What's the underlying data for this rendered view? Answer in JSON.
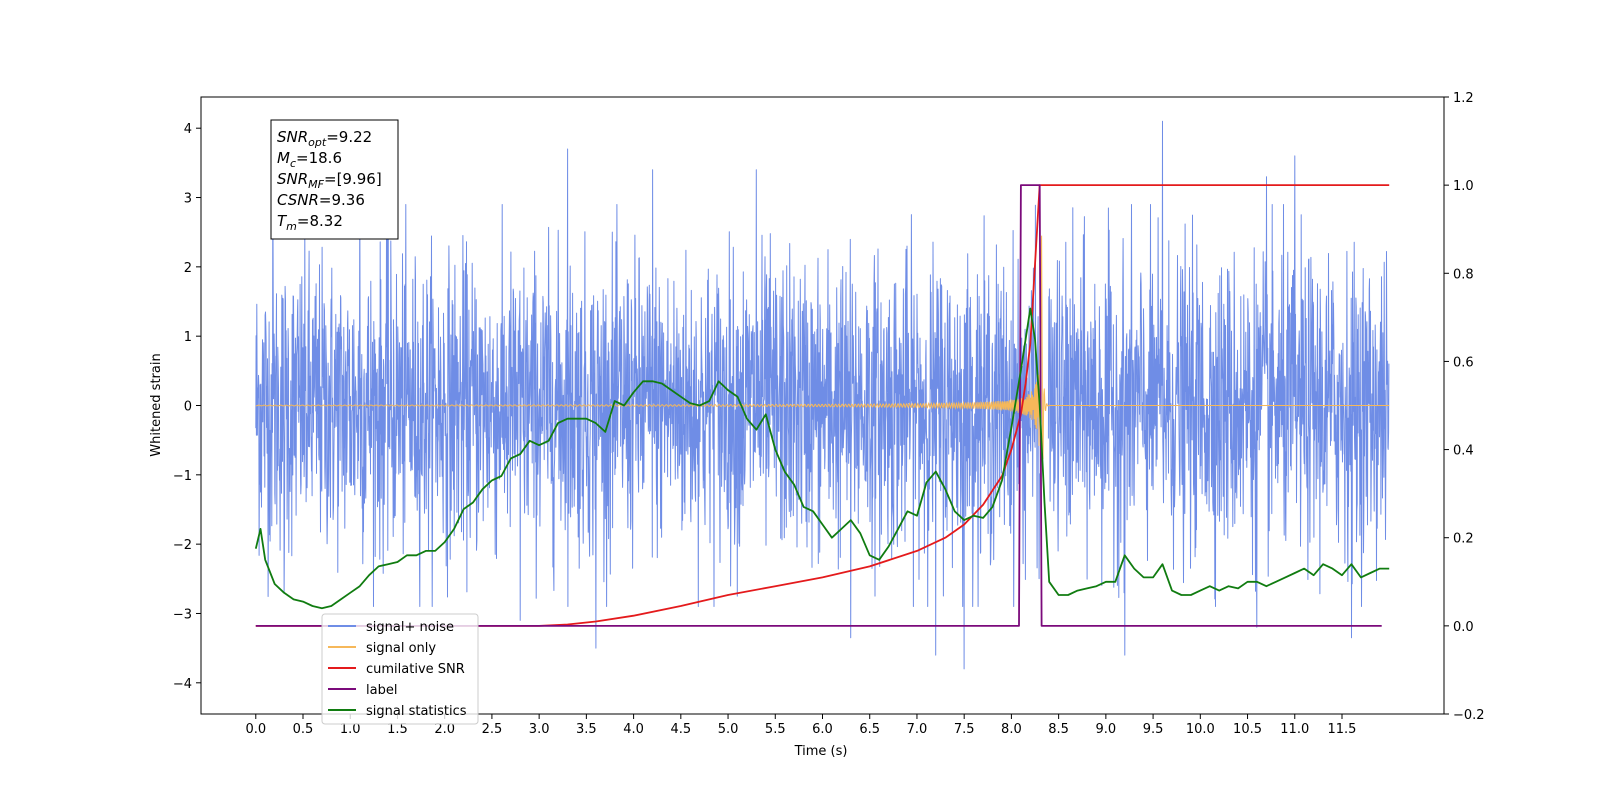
{
  "chart_data": {
    "type": "line",
    "xlabel": "Time (s)",
    "ylabel": "Whitened strain",
    "xlim": [
      -0.58,
      12.58
    ],
    "ylim": [
      -4.45,
      4.45
    ],
    "y2lim": [
      -0.2,
      1.2
    ],
    "x_ticks": [
      "0.0",
      "0.5",
      "1.0",
      "1.5",
      "2.0",
      "2.5",
      "3.0",
      "3.5",
      "4.0",
      "4.5",
      "5.0",
      "5.5",
      "6.0",
      "6.5",
      "7.0",
      "7.5",
      "8.0",
      "8.5",
      "9.0",
      "9.5",
      "10.0",
      "10.5",
      "11.0",
      "11.5"
    ],
    "y_ticks": [
      "4",
      "3",
      "2",
      "1",
      "0",
      "−1",
      "−2",
      "−3",
      "−4"
    ],
    "y2_ticks": [
      "1.2",
      "1.0",
      "0.8",
      "0.6",
      "0.4",
      "0.2",
      "0.0",
      "−0.2"
    ],
    "grid": false,
    "legend_position": "lower-left",
    "info_box": [
      {
        "main": "SNR",
        "sub": "opt",
        "value": "=9.22"
      },
      {
        "main": "M",
        "sub": "c",
        "value": "=18.6"
      },
      {
        "main": "SNR",
        "sub": "MF",
        "value": "=[9.96]"
      },
      {
        "main": "CSNR",
        "sub": "",
        "value": "=9.36"
      },
      {
        "main": "T",
        "sub": "m",
        "value": "=8.32"
      }
    ],
    "series": [
      {
        "name": "signal+ noise",
        "color": "#6f8de6",
        "axis": "left",
        "kind": "noise",
        "x_range": [
          0.0,
          12.0
        ],
        "std": 1.05,
        "peaks": [
          [
            0.18,
            3.3
          ],
          [
            1.1,
            3.3
          ],
          [
            1.4,
            3.6
          ],
          [
            3.3,
            3.7
          ],
          [
            4.2,
            3.4
          ],
          [
            5.3,
            3.4
          ],
          [
            6.3,
            3.95
          ],
          [
            9.6,
            4.1
          ],
          [
            10.7,
            3.3
          ],
          [
            11.0,
            3.6
          ],
          [
            11.6,
            3.65
          ],
          [
            0.3,
            -2.7
          ],
          [
            2.8,
            -3.1
          ],
          [
            3.6,
            -3.5
          ],
          [
            6.3,
            -3.35
          ],
          [
            7.2,
            -3.6
          ],
          [
            7.5,
            -3.8
          ],
          [
            9.2,
            -3.6
          ],
          [
            10.6,
            -3.2
          ],
          [
            11.6,
            -3.35
          ]
        ],
        "excluded_interval": [
          8.3,
          8.39
        ]
      },
      {
        "name": "signal only",
        "color": "#f6b85a",
        "axis": "left",
        "kind": "chirp",
        "x_range": [
          0.0,
          12.0
        ],
        "merger_time": 8.32,
        "peak_amplitude": 2.5
      },
      {
        "name": "cumilative SNR",
        "color": "#e41a1c",
        "axis": "right",
        "x": [
          0.0,
          3.0,
          3.3,
          3.6,
          4.0,
          4.5,
          5.0,
          5.5,
          6.0,
          6.5,
          7.0,
          7.3,
          7.5,
          7.7,
          7.9,
          8.0,
          8.1,
          8.15,
          8.2,
          8.25,
          8.3,
          12.0
        ],
        "y": [
          0.0,
          0.0,
          0.003,
          0.01,
          0.023,
          0.045,
          0.07,
          0.09,
          0.11,
          0.135,
          0.17,
          0.2,
          0.23,
          0.275,
          0.34,
          0.4,
          0.48,
          0.55,
          0.64,
          0.82,
          1.0,
          1.0
        ]
      },
      {
        "name": "label",
        "color": "#7b0a7b",
        "axis": "right",
        "x": [
          0.0,
          8.08,
          8.1,
          8.3,
          8.32,
          11.92
        ],
        "y": [
          0.0,
          0.0,
          1.0,
          1.0,
          0.0,
          0.0
        ]
      },
      {
        "name": "signal statistics",
        "color": "#107c10",
        "axis": "right",
        "x": [
          0.0,
          0.05,
          0.1,
          0.2,
          0.3,
          0.4,
          0.5,
          0.6,
          0.7,
          0.8,
          0.9,
          1.0,
          1.1,
          1.2,
          1.3,
          1.4,
          1.5,
          1.6,
          1.7,
          1.8,
          1.9,
          2.0,
          2.1,
          2.2,
          2.3,
          2.4,
          2.5,
          2.6,
          2.7,
          2.8,
          2.9,
          3.0,
          3.1,
          3.2,
          3.3,
          3.4,
          3.5,
          3.6,
          3.7,
          3.8,
          3.9,
          4.0,
          4.1,
          4.2,
          4.3,
          4.4,
          4.5,
          4.6,
          4.7,
          4.8,
          4.9,
          5.0,
          5.1,
          5.2,
          5.3,
          5.4,
          5.5,
          5.6,
          5.7,
          5.8,
          5.9,
          6.0,
          6.1,
          6.2,
          6.3,
          6.4,
          6.5,
          6.6,
          6.7,
          6.8,
          6.9,
          7.0,
          7.1,
          7.2,
          7.3,
          7.4,
          7.5,
          7.6,
          7.7,
          7.8,
          7.9,
          8.0,
          8.1,
          8.2,
          8.25,
          8.3,
          8.35,
          8.4,
          8.5,
          8.6,
          8.7,
          8.8,
          8.9,
          9.0,
          9.1,
          9.2,
          9.3,
          9.4,
          9.5,
          9.6,
          9.7,
          9.8,
          9.9,
          10.0,
          10.1,
          10.2,
          10.3,
          10.4,
          10.5,
          10.6,
          10.7,
          10.8,
          10.9,
          11.0,
          11.1,
          11.2,
          11.3,
          11.4,
          11.5,
          11.6,
          11.7,
          11.8,
          11.9,
          12.0
        ],
        "y": [
          0.175,
          0.22,
          0.15,
          0.095,
          0.075,
          0.06,
          0.055,
          0.045,
          0.04,
          0.045,
          0.06,
          0.075,
          0.09,
          0.115,
          0.135,
          0.14,
          0.145,
          0.16,
          0.16,
          0.17,
          0.17,
          0.19,
          0.22,
          0.265,
          0.28,
          0.31,
          0.33,
          0.34,
          0.38,
          0.39,
          0.42,
          0.41,
          0.42,
          0.46,
          0.47,
          0.47,
          0.47,
          0.46,
          0.44,
          0.51,
          0.5,
          0.53,
          0.555,
          0.555,
          0.55,
          0.535,
          0.52,
          0.505,
          0.5,
          0.51,
          0.555,
          0.535,
          0.52,
          0.47,
          0.445,
          0.48,
          0.4,
          0.35,
          0.32,
          0.27,
          0.26,
          0.23,
          0.2,
          0.22,
          0.24,
          0.21,
          0.16,
          0.15,
          0.18,
          0.22,
          0.26,
          0.25,
          0.325,
          0.35,
          0.31,
          0.26,
          0.24,
          0.25,
          0.245,
          0.27,
          0.33,
          0.45,
          0.58,
          0.72,
          0.65,
          0.5,
          0.28,
          0.1,
          0.07,
          0.07,
          0.08,
          0.085,
          0.09,
          0.1,
          0.1,
          0.16,
          0.13,
          0.11,
          0.11,
          0.14,
          0.08,
          0.07,
          0.07,
          0.08,
          0.09,
          0.08,
          0.09,
          0.085,
          0.1,
          0.1,
          0.09,
          0.1,
          0.11,
          0.12,
          0.13,
          0.115,
          0.14,
          0.13,
          0.115,
          0.14,
          0.11,
          0.12,
          0.13,
          0.13
        ]
      }
    ]
  }
}
